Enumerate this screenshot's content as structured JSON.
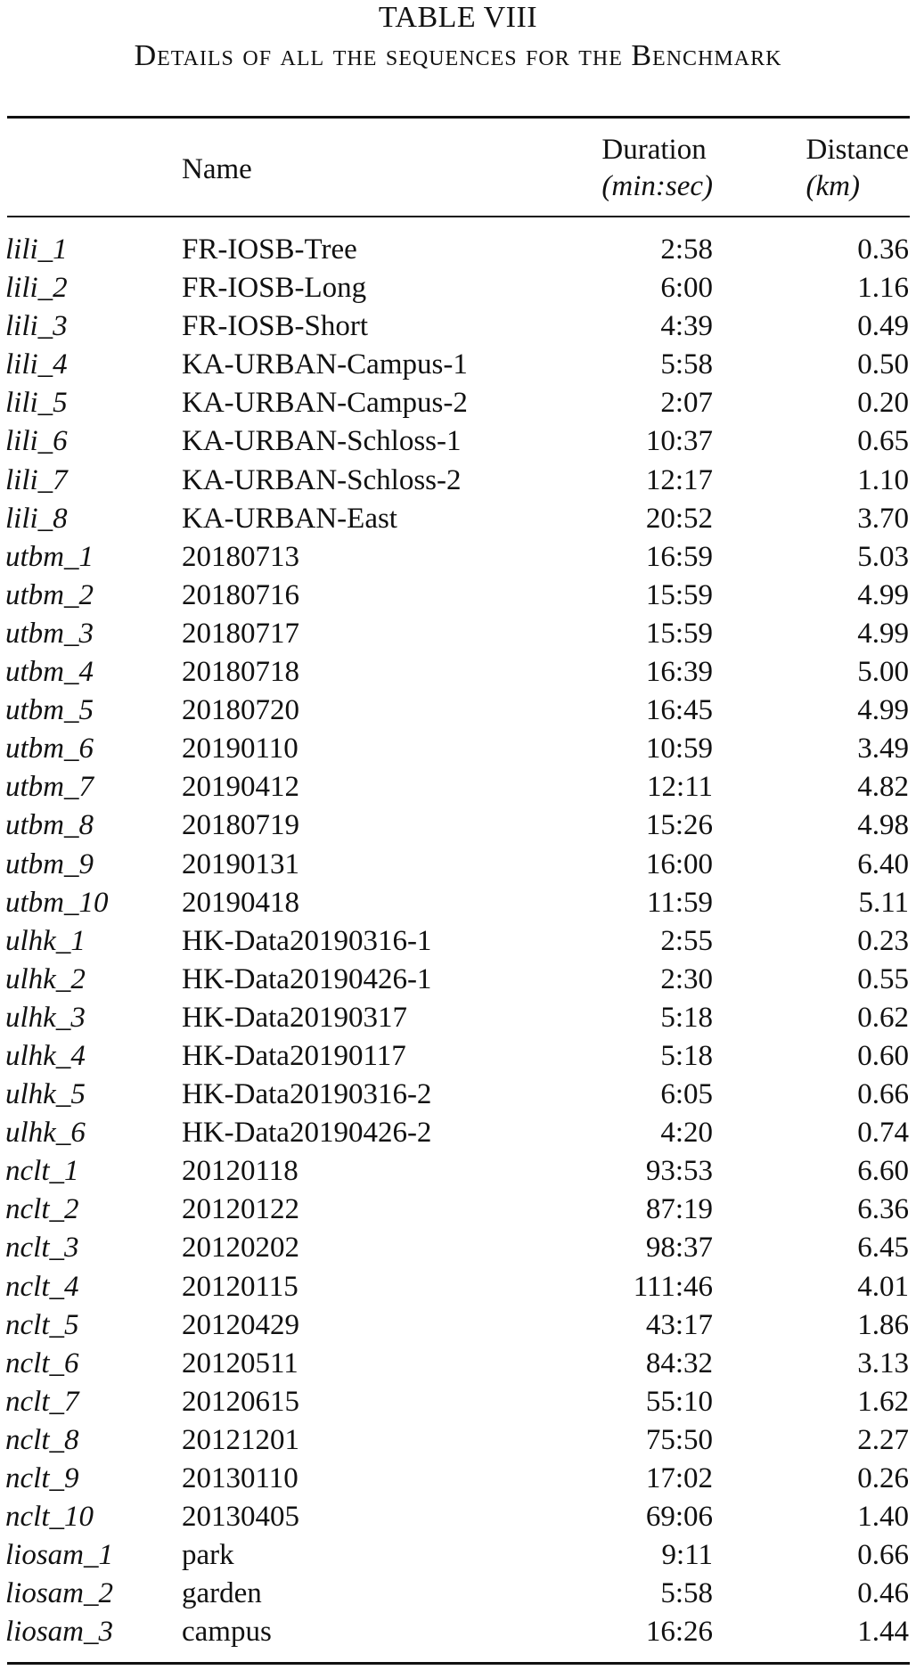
{
  "caption": {
    "title": "TABLE VIII",
    "subtitle": "Details of all the sequences for the Benchmark"
  },
  "table": {
    "headers": {
      "name": "Name",
      "duration": "Duration",
      "duration_unit": "(min:sec)",
      "distance": "Distance",
      "distance_unit": "(km)"
    },
    "rows": [
      {
        "id": "lili_1",
        "name": "FR-IOSB-Tree",
        "duration": "2:58",
        "distance": "0.36"
      },
      {
        "id": "lili_2",
        "name": "FR-IOSB-Long",
        "duration": "6:00",
        "distance": "1.16"
      },
      {
        "id": "lili_3",
        "name": "FR-IOSB-Short",
        "duration": "4:39",
        "distance": "0.49"
      },
      {
        "id": "lili_4",
        "name": "KA-URBAN-Campus-1",
        "duration": "5:58",
        "distance": "0.50"
      },
      {
        "id": "lili_5",
        "name": "KA-URBAN-Campus-2",
        "duration": "2:07",
        "distance": "0.20"
      },
      {
        "id": "lili_6",
        "name": "KA-URBAN-Schloss-1",
        "duration": "10:37",
        "distance": "0.65"
      },
      {
        "id": "lili_7",
        "name": "KA-URBAN-Schloss-2",
        "duration": "12:17",
        "distance": "1.10"
      },
      {
        "id": "lili_8",
        "name": "KA-URBAN-East",
        "duration": "20:52",
        "distance": "3.70"
      },
      {
        "id": "utbm_1",
        "name": "20180713",
        "duration": "16:59",
        "distance": "5.03"
      },
      {
        "id": "utbm_2",
        "name": "20180716",
        "duration": "15:59",
        "distance": "4.99"
      },
      {
        "id": "utbm_3",
        "name": "20180717",
        "duration": "15:59",
        "distance": "4.99"
      },
      {
        "id": "utbm_4",
        "name": "20180718",
        "duration": "16:39",
        "distance": "5.00"
      },
      {
        "id": "utbm_5",
        "name": "20180720",
        "duration": "16:45",
        "distance": "4.99"
      },
      {
        "id": "utbm_6",
        "name": "20190110",
        "duration": "10:59",
        "distance": "3.49"
      },
      {
        "id": "utbm_7",
        "name": "20190412",
        "duration": "12:11",
        "distance": "4.82"
      },
      {
        "id": "utbm_8",
        "name": "20180719",
        "duration": "15:26",
        "distance": "4.98"
      },
      {
        "id": "utbm_9",
        "name": "20190131",
        "duration": "16:00",
        "distance": "6.40"
      },
      {
        "id": "utbm_10",
        "name": "20190418",
        "duration": "11:59",
        "distance": "5.11"
      },
      {
        "id": "ulhk_1",
        "name": "HK-Data20190316-1",
        "duration": "2:55",
        "distance": "0.23"
      },
      {
        "id": "ulhk_2",
        "name": "HK-Data20190426-1",
        "duration": "2:30",
        "distance": "0.55"
      },
      {
        "id": "ulhk_3",
        "name": "HK-Data20190317",
        "duration": "5:18",
        "distance": "0.62"
      },
      {
        "id": "ulhk_4",
        "name": "HK-Data20190117",
        "duration": "5:18",
        "distance": "0.60"
      },
      {
        "id": "ulhk_5",
        "name": "HK-Data20190316-2",
        "duration": "6:05",
        "distance": "0.66"
      },
      {
        "id": "ulhk_6",
        "name": "HK-Data20190426-2",
        "duration": "4:20",
        "distance": "0.74"
      },
      {
        "id": "nclt_1",
        "name": "20120118",
        "duration": "93:53",
        "distance": "6.60"
      },
      {
        "id": "nclt_2",
        "name": "20120122",
        "duration": "87:19",
        "distance": "6.36"
      },
      {
        "id": "nclt_3",
        "name": "20120202",
        "duration": "98:37",
        "distance": "6.45"
      },
      {
        "id": "nclt_4",
        "name": "20120115",
        "duration": "111:46",
        "distance": "4.01"
      },
      {
        "id": "nclt_5",
        "name": "20120429",
        "duration": "43:17",
        "distance": "1.86"
      },
      {
        "id": "nclt_6",
        "name": "20120511",
        "duration": "84:32",
        "distance": "3.13"
      },
      {
        "id": "nclt_7",
        "name": "20120615",
        "duration": "55:10",
        "distance": "1.62"
      },
      {
        "id": "nclt_8",
        "name": "20121201",
        "duration": "75:50",
        "distance": "2.27"
      },
      {
        "id": "nclt_9",
        "name": "20130110",
        "duration": "17:02",
        "distance": "0.26"
      },
      {
        "id": "nclt_10",
        "name": "20130405",
        "duration": "69:06",
        "distance": "1.40"
      },
      {
        "id": "liosam_1",
        "name": "park",
        "duration": "9:11",
        "distance": "0.66"
      },
      {
        "id": "liosam_2",
        "name": "garden",
        "duration": "5:58",
        "distance": "0.46"
      },
      {
        "id": "liosam_3",
        "name": "campus",
        "duration": "16:26",
        "distance": "1.44"
      }
    ]
  }
}
